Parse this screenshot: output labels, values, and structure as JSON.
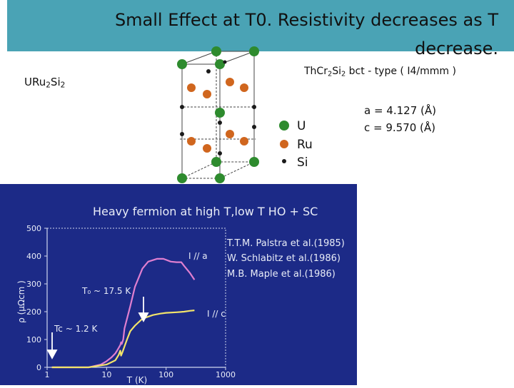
{
  "title": {
    "line1": "Small Effect at T0. Resistivity decreases as T",
    "line2": "decrease."
  },
  "compound": {
    "base": "URu",
    "sub1": "2",
    "mid": "Si",
    "sub2": "2"
  },
  "structure": {
    "prefix": "ThCr",
    "sub1": "2",
    "mid": "Si",
    "sub2": "2",
    "suffix": " bct - type ( I4/mmm )"
  },
  "legend": [
    {
      "label": "U",
      "color": "#2e8b2e"
    },
    {
      "label": "Ru",
      "color": "#d0661e"
    },
    {
      "label": "Si",
      "color": "#1a1a1a"
    }
  ],
  "lattice": {
    "a": "a = 4.127 (Å)",
    "c": "c = 9.570 (Å)"
  },
  "plot": {
    "heading": "Heavy fermion at high T,low T  HO + SC",
    "ylabel": "ρ (μΩcm )",
    "xlabel": "T (K)",
    "refs": [
      "T.T.M. Palstra et al.(1985)",
      "W. Schlabitz et al.(1986)",
      "M.B. Maple et al.(1986)"
    ],
    "labels": {
      "ia": "I // a",
      "ic": "I // c",
      "to": "T₀ ~ 17.5 K",
      "tc": "Tc ~ 1.2 K"
    }
  },
  "chart_data": {
    "type": "line",
    "xscale": "log",
    "xlim": [
      1,
      1000
    ],
    "ylim": [
      0,
      500
    ],
    "xticks": [
      "1",
      "10",
      "100",
      "1000"
    ],
    "yticks": [
      "0",
      "100",
      "200",
      "300",
      "400",
      "500"
    ],
    "series": [
      {
        "name": "I // a",
        "color": "#e07fd0",
        "x": [
          1.2,
          5,
          8,
          10,
          12,
          14,
          15,
          16,
          17,
          17.5,
          18,
          19,
          20,
          25,
          30,
          40,
          50,
          70,
          90,
          120,
          150,
          180,
          200,
          250,
          300
        ],
        "y": [
          0,
          0,
          10,
          22,
          35,
          50,
          60,
          70,
          80,
          90,
          84,
          100,
          140,
          220,
          290,
          355,
          380,
          390,
          390,
          380,
          378,
          378,
          365,
          340,
          315
        ]
      },
      {
        "name": "I // c",
        "color": "#f2e46a",
        "x": [
          1.2,
          5,
          10,
          14,
          16,
          17,
          17.5,
          18.5,
          20,
          22,
          25,
          30,
          40,
          60,
          80,
          100,
          150,
          200,
          250,
          300
        ],
        "y": [
          0,
          0,
          10,
          25,
          45,
          60,
          42,
          55,
          75,
          100,
          130,
          150,
          175,
          188,
          193,
          196,
          198,
          200,
          203,
          205
        ]
      }
    ]
  }
}
